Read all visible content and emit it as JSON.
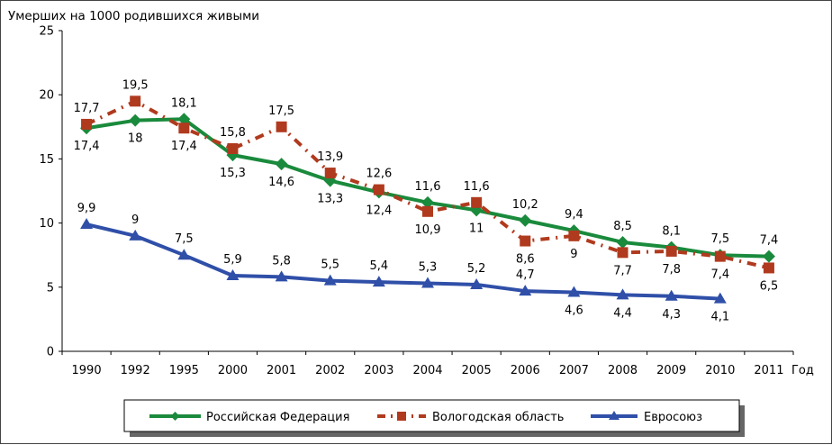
{
  "chart_data": {
    "type": "line",
    "title": "Умерших на 1000 родившихся живыми",
    "xlabel": "Год",
    "ylabel": "Умерших на 1000 родившихся живыми",
    "ylim": [
      0,
      25
    ],
    "yticks": [
      "0",
      "5",
      "10",
      "15",
      "20",
      "25"
    ],
    "categories": [
      "1990",
      "1992",
      "1995",
      "2000",
      "2001",
      "2002",
      "2003",
      "2004",
      "2005",
      "2006",
      "2007",
      "2008",
      "2009",
      "2010",
      "2011"
    ],
    "series": [
      {
        "name": "Российская Федерация",
        "color": "#1a8a3c",
        "marker": "diamond",
        "dash": "solid",
        "values": [
          17.4,
          18,
          18.1,
          15.3,
          14.6,
          13.3,
          12.4,
          11.6,
          11,
          10.2,
          9.4,
          8.5,
          8.1,
          7.5,
          7.4
        ],
        "labels": [
          "17,4",
          "18",
          "18,1",
          "15,3",
          "14,6",
          "13,3",
          "12,4",
          "11,6",
          "11",
          "10,2",
          "9,4",
          "8,5",
          "8,1",
          "7,5",
          "7,4"
        ]
      },
      {
        "name": "Вологодская область",
        "color": "#b03a1e",
        "marker": "square",
        "dash": "dashdot",
        "values": [
          17.7,
          19.5,
          17.4,
          15.8,
          17.5,
          13.9,
          12.6,
          10.9,
          11.6,
          8.6,
          9,
          7.7,
          7.8,
          7.4,
          6.5
        ],
        "labels": [
          "17,7",
          "19,5",
          "17,4",
          "15,8",
          "17,5",
          "13,9",
          "12,6",
          "10,9",
          "11,6",
          "8,6",
          "9",
          "7,7",
          "7,8",
          "7,4",
          "6,5"
        ]
      },
      {
        "name": "Евросоюз",
        "color": "#2f4fa8",
        "marker": "triangle",
        "dash": "solid",
        "values": [
          9.9,
          9,
          7.5,
          5.9,
          5.8,
          5.5,
          5.4,
          5.3,
          5.2,
          4.7,
          4.6,
          4.4,
          4.3,
          4.1,
          null
        ],
        "labels": [
          "9,9",
          "9",
          "7,5",
          "5,9",
          "5,8",
          "5,5",
          "5,4",
          "5,3",
          "5,2",
          "4,7",
          "4,6",
          "4,4",
          "4,3",
          "4,1",
          null
        ]
      }
    ],
    "legend_position": "bottom"
  }
}
